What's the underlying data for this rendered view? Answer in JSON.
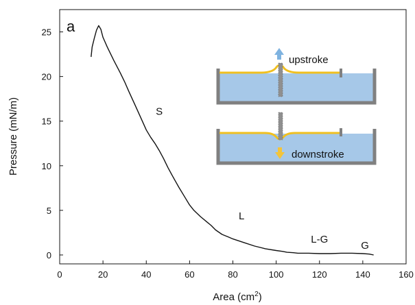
{
  "chart_data": {
    "type": "line",
    "panel_label": "a",
    "title": "",
    "xlabel": "Area (cm",
    "xlabel_superscript": "2",
    "xlabel_suffix": ")",
    "ylabel": "Pressure (mN/m)",
    "xlim": [
      0,
      160
    ],
    "ylim": [
      -1,
      27.5
    ],
    "x_ticks": [
      0,
      20,
      40,
      60,
      80,
      100,
      120,
      140,
      160
    ],
    "y_ticks": [
      0,
      5,
      10,
      15,
      20,
      25
    ],
    "grid": false,
    "legend": "none",
    "line_color": "#111111",
    "series": [
      {
        "x": [
          14.5,
          15,
          16,
          17,
          18,
          19,
          20,
          22,
          25,
          28,
          30,
          32,
          35,
          38,
          40,
          42,
          44,
          46,
          48,
          50,
          52,
          55,
          58,
          60,
          62,
          65,
          68,
          70,
          72,
          75,
          78,
          80,
          85,
          90,
          95,
          100,
          103,
          105,
          108,
          110,
          115,
          120,
          125,
          130,
          135,
          140,
          143,
          145
        ],
        "y": [
          22.2,
          23.3,
          24.3,
          25.2,
          25.7,
          25.3,
          24.4,
          23.3,
          21.8,
          20.4,
          19.4,
          18.3,
          16.7,
          15.1,
          14.0,
          13.2,
          12.5,
          11.7,
          10.8,
          9.8,
          8.9,
          7.6,
          6.4,
          5.6,
          5.0,
          4.3,
          3.7,
          3.3,
          2.8,
          2.3,
          2.0,
          1.8,
          1.4,
          1.0,
          0.7,
          0.5,
          0.4,
          0.3,
          0.25,
          0.2,
          0.2,
          0.15,
          0.15,
          0.2,
          0.2,
          0.15,
          0.1,
          0.0
        ]
      }
    ],
    "annotations": [
      {
        "text": "S",
        "x": 46,
        "y": 15.7
      },
      {
        "text": "L",
        "x": 84,
        "y": 4.0
      },
      {
        "text": "L-G",
        "x": 120,
        "y": 1.4
      },
      {
        "text": "G",
        "x": 141,
        "y": 0.7
      }
    ],
    "inset": {
      "upstroke_label": "upstroke",
      "downstroke_label": "downstroke",
      "water_color": "#a6c8e8",
      "film_color": "#f0c020",
      "trough_color": "#808080",
      "plate_color": "#909090",
      "up_arrow_color": "#7fb3e0",
      "down_arrow_color": "#f3c43a"
    }
  }
}
